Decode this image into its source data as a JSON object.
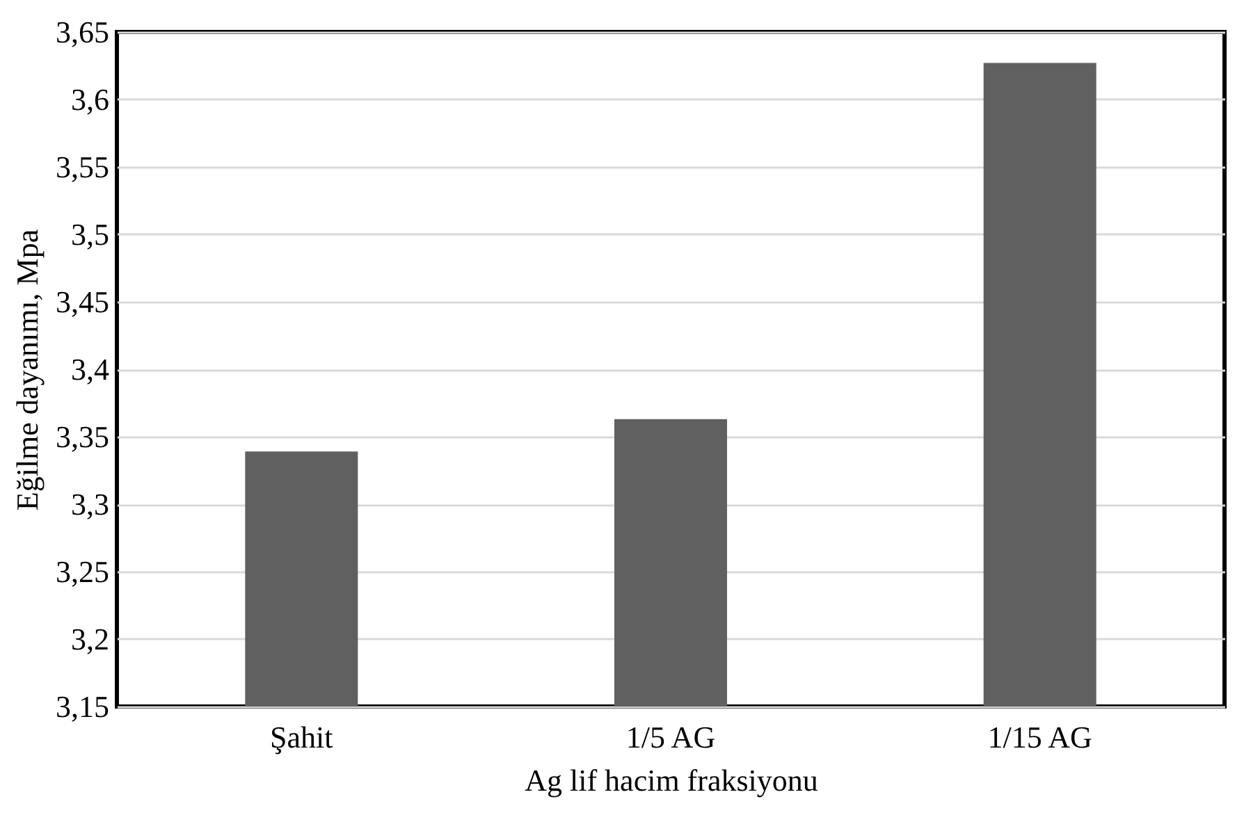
{
  "chart_data": {
    "type": "bar",
    "xlabel": "Ag lif hacim fraksiyonu",
    "ylabel": "Eğilme dayanımı, Mpa",
    "categories": [
      "Şahit",
      "1/5 AG",
      "1/15 AG"
    ],
    "series": [
      {
        "color": "#606060",
        "values": [
          3.339,
          3.363,
          3.627
        ]
      }
    ],
    "ylim": [
      3.15,
      3.65
    ],
    "yticks": [
      {
        "value": 3.15,
        "label": "3,15"
      },
      {
        "value": 3.2,
        "label": "3,2"
      },
      {
        "value": 3.25,
        "label": "3,25"
      },
      {
        "value": 3.3,
        "label": "3,3"
      },
      {
        "value": 3.35,
        "label": "3,35"
      },
      {
        "value": 3.4,
        "label": "3,4"
      },
      {
        "value": 3.45,
        "label": "3,45"
      },
      {
        "value": 3.5,
        "label": "3,5"
      },
      {
        "value": 3.55,
        "label": "3,55"
      },
      {
        "value": 3.6,
        "label": "3,6"
      },
      {
        "value": 3.65,
        "label": "3,65"
      }
    ],
    "grid": "y"
  }
}
